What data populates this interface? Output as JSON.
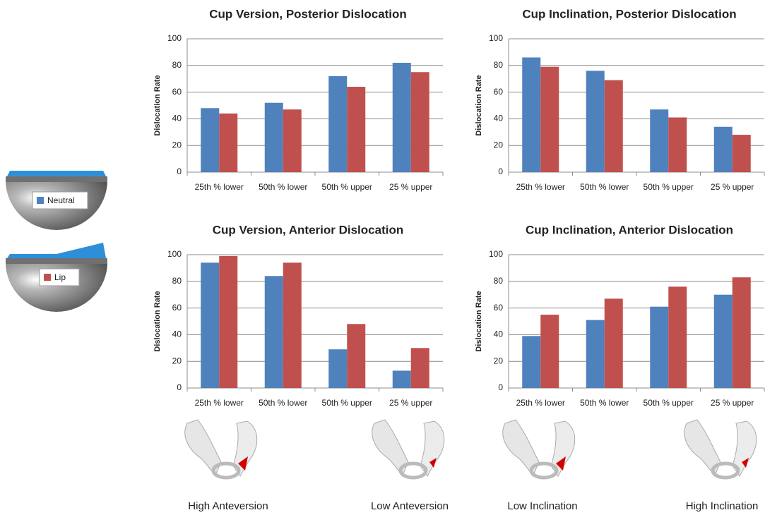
{
  "chart_data": [
    {
      "type": "bar",
      "title": "Cup Version, Posterior Dislocation",
      "y_label": "Dislocation Rate",
      "categories": [
        "25th % lower",
        "50th % lower",
        "50th % upper",
        "25 % upper"
      ],
      "series": [
        {
          "name": "Neutral",
          "color": "#4f81bd",
          "values": [
            48,
            52,
            72,
            82
          ]
        },
        {
          "name": "Lip",
          "color": "#c0504d",
          "values": [
            44,
            47,
            64,
            75
          ]
        }
      ],
      "ylim": [
        0,
        100
      ],
      "yticks": [
        0,
        20,
        40,
        60,
        80,
        100
      ],
      "grid": true
    },
    {
      "type": "bar",
      "title": "Cup Inclination, Posterior Dislocation",
      "y_label": "Dislocation Rate",
      "categories": [
        "25th % lower",
        "50th % lower",
        "50th % upper",
        "25 % upper"
      ],
      "series": [
        {
          "name": "Neutral",
          "color": "#4f81bd",
          "values": [
            86,
            76,
            47,
            34
          ]
        },
        {
          "name": "Lip",
          "color": "#c0504d",
          "values": [
            79,
            69,
            41,
            28
          ]
        }
      ],
      "ylim": [
        0,
        100
      ],
      "yticks": [
        0,
        20,
        40,
        60,
        80,
        100
      ],
      "grid": true
    },
    {
      "type": "bar",
      "title": "Cup Version, Anterior Dislocation",
      "y_label": "Dislocation Rate",
      "categories": [
        "25th % lower",
        "50th % lower",
        "50th % upper",
        "25 % upper"
      ],
      "series": [
        {
          "name": "Neutral",
          "color": "#4f81bd",
          "values": [
            94,
            84,
            29,
            13
          ]
        },
        {
          "name": "Lip",
          "color": "#c0504d",
          "values": [
            99,
            94,
            48,
            30
          ]
        }
      ],
      "ylim": [
        0,
        100
      ],
      "yticks": [
        0,
        20,
        40,
        60,
        80,
        100
      ],
      "grid": true
    },
    {
      "type": "bar",
      "title": "Cup Inclination, Anterior Dislocation",
      "y_label": "Dislocation Rate",
      "categories": [
        "25th % lower",
        "50th % lower",
        "50th % upper",
        "25 % upper"
      ],
      "series": [
        {
          "name": "Neutral",
          "color": "#4f81bd",
          "values": [
            39,
            51,
            61,
            70
          ]
        },
        {
          "name": "Lip",
          "color": "#c0504d",
          "values": [
            55,
            67,
            76,
            83
          ]
        }
      ],
      "ylim": [
        0,
        100
      ],
      "yticks": [
        0,
        20,
        40,
        60,
        80,
        100
      ],
      "grid": true
    }
  ],
  "captions": [
    "High Anteversion",
    "Low Anteversion",
    "Low Inclination",
    "High Inclination"
  ]
}
